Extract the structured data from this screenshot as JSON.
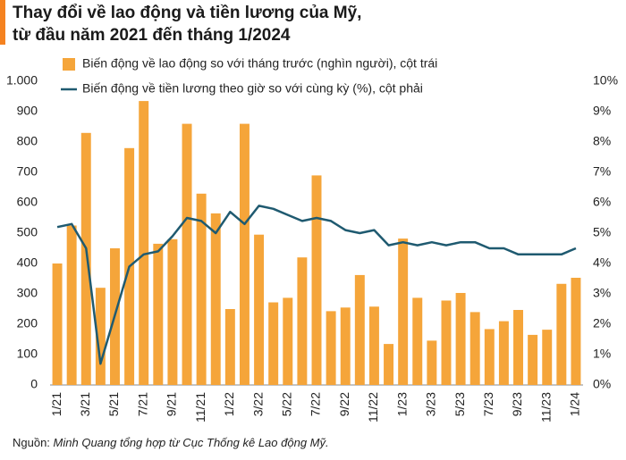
{
  "chart_data": {
    "type": "bar",
    "title": [
      "Thay đổi về lao động và tiền lương của Mỹ,",
      "từ đầu năm 2021 đến tháng 1/2024"
    ],
    "source_label": "Nguồn: ",
    "source": "Minh Quang tổng hợp từ Cục Thống kê Lao động Mỹ.",
    "categories": [
      "1/21",
      null,
      "3/21",
      null,
      "5/21",
      null,
      "7/21",
      null,
      "9/21",
      null,
      "11/21",
      null,
      "1/22",
      null,
      "3/22",
      null,
      "5/22",
      null,
      "7/22",
      null,
      "9/22",
      null,
      "11/22",
      null,
      "1/23",
      null,
      "3/23",
      null,
      "5/23",
      null,
      "7/23",
      null,
      "9/23",
      null,
      "11/23",
      null,
      "1/24"
    ],
    "series": [
      {
        "name": "Biến động về lao động so với tháng trước (nghìn người), cột trái",
        "type": "bar",
        "color": "#f5a53a",
        "values": [
          400,
          525,
          830,
          320,
          450,
          780,
          935,
          465,
          480,
          860,
          630,
          565,
          250,
          860,
          495,
          272,
          287,
          420,
          690,
          243,
          255,
          362,
          258,
          135,
          482,
          287,
          146,
          278,
          303,
          240,
          184,
          210,
          247,
          165,
          182,
          333,
          353
        ]
      },
      {
        "name": "Biến động về tiền lương theo giờ so với cùng kỳ (%), cột phải",
        "type": "line",
        "axis": "y2",
        "color": "#1f5a70",
        "values": [
          5.2,
          5.3,
          4.5,
          0.7,
          2.3,
          3.9,
          4.3,
          4.4,
          4.9,
          5.5,
          5.4,
          5.0,
          5.7,
          5.3,
          5.9,
          5.8,
          5.6,
          5.4,
          5.5,
          5.4,
          5.1,
          5.0,
          5.1,
          4.6,
          4.7,
          4.6,
          4.7,
          4.6,
          4.7,
          4.7,
          4.5,
          4.5,
          4.3,
          4.3,
          4.3,
          4.3,
          4.5
        ]
      }
    ],
    "ylim": [
      0,
      1000
    ],
    "yticks": [
      0,
      100,
      200,
      300,
      400,
      500,
      600,
      700,
      800,
      900,
      {
        "value": 1000,
        "label": "1.000"
      }
    ],
    "y2lim": [
      0,
      10
    ],
    "y2ticks": [
      {
        "value": 0,
        "label": "0%"
      },
      {
        "value": 1,
        "label": "1%"
      },
      {
        "value": 2,
        "label": "2%"
      },
      {
        "value": 3,
        "label": "3%"
      },
      {
        "value": 4,
        "label": "4%"
      },
      {
        "value": 5,
        "label": "5%"
      },
      {
        "value": 6,
        "label": "6%"
      },
      {
        "value": 7,
        "label": "7%"
      },
      {
        "value": 8,
        "label": "8%"
      },
      {
        "value": 9,
        "label": "9%"
      },
      {
        "value": 10,
        "label": "10%"
      }
    ],
    "grid": false
  }
}
